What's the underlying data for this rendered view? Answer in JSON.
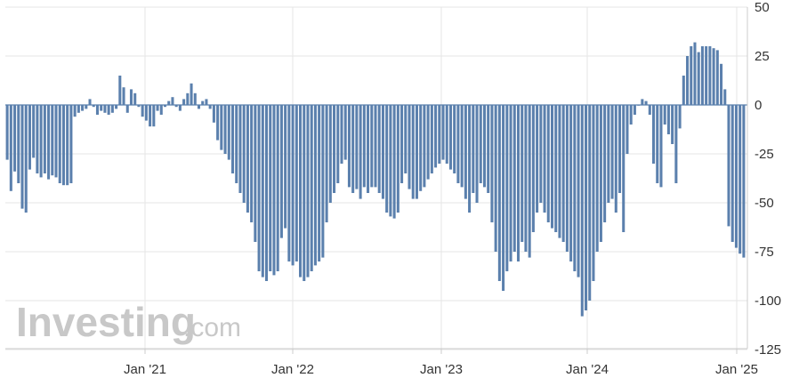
{
  "brand": {
    "name": "Investing",
    "suffix": ".com"
  },
  "colors": {
    "bar": "#5b80ad",
    "grid": "#e6e6e6",
    "axis": "#cccccc",
    "brand_text": "#c8c8c8"
  },
  "chart_data": {
    "type": "bar",
    "title": "",
    "xlabel": "",
    "ylabel": "",
    "ylim": [
      -125,
      50
    ],
    "y_ticks": [
      50,
      25,
      0,
      -25,
      -50,
      -75,
      -100,
      -125
    ],
    "y_tick_labels": [
      "50",
      "25",
      "0",
      "-25",
      "-50",
      "-75",
      "-100",
      "-125"
    ],
    "x_ticks": [
      "Jan '21",
      "Jan '22",
      "Jan '23",
      "Jan '24",
      "Jan '25"
    ],
    "grid": true,
    "axis_position": "right",
    "series": [
      {
        "values": [
          -28,
          -44,
          -34,
          -40,
          -53,
          -55,
          -33,
          -27,
          -35,
          -37,
          -35,
          -38,
          -36,
          -37,
          -40,
          -41,
          -41,
          -40,
          -6,
          -4,
          -3,
          -2,
          3,
          -1,
          -5,
          -3,
          -4,
          -5,
          -4,
          -2,
          15,
          9,
          -4,
          8,
          6,
          -1,
          -6,
          -8,
          -11,
          -11,
          -3,
          -5,
          -1,
          2,
          4,
          -1,
          -3,
          3,
          6,
          11,
          6,
          -2,
          2,
          3,
          -2,
          -9,
          -18,
          -23,
          -25,
          -28,
          -35,
          -40,
          -45,
          -50,
          -55,
          -60,
          -70,
          -85,
          -88,
          -90,
          -85,
          -87,
          -85,
          -68,
          -63,
          -80,
          -82,
          -80,
          -88,
          -90,
          -88,
          -85,
          -82,
          -80,
          -78,
          -60,
          -50,
          -45,
          -40,
          -30,
          -28,
          -42,
          -45,
          -43,
          -48,
          -42,
          -45,
          -42,
          -42,
          -45,
          -48,
          -55,
          -57,
          -58,
          -55,
          -40,
          -35,
          -43,
          -48,
          -48,
          -44,
          -42,
          -38,
          -35,
          -32,
          -30,
          -28,
          -30,
          -33,
          -35,
          -40,
          -42,
          -48,
          -55,
          -45,
          -50,
          -40,
          -42,
          -45,
          -60,
          -75,
          -90,
          -95,
          -85,
          -80,
          -75,
          -80,
          -70,
          -75,
          -78,
          -65,
          -55,
          -50,
          -55,
          -60,
          -63,
          -65,
          -68,
          -70,
          -75,
          -80,
          -85,
          -88,
          -108,
          -105,
          -100,
          -90,
          -75,
          -70,
          -60,
          -50,
          -48,
          -55,
          -45,
          -65,
          -25,
          -10,
          -5,
          0,
          3,
          2,
          -5,
          -30,
          -40,
          -42,
          -10,
          -15,
          -20,
          -40,
          -12,
          15,
          25,
          30,
          32,
          27,
          30,
          30,
          30,
          29,
          28,
          21,
          8,
          -62,
          -70,
          -73,
          -76,
          -78
        ]
      }
    ]
  }
}
